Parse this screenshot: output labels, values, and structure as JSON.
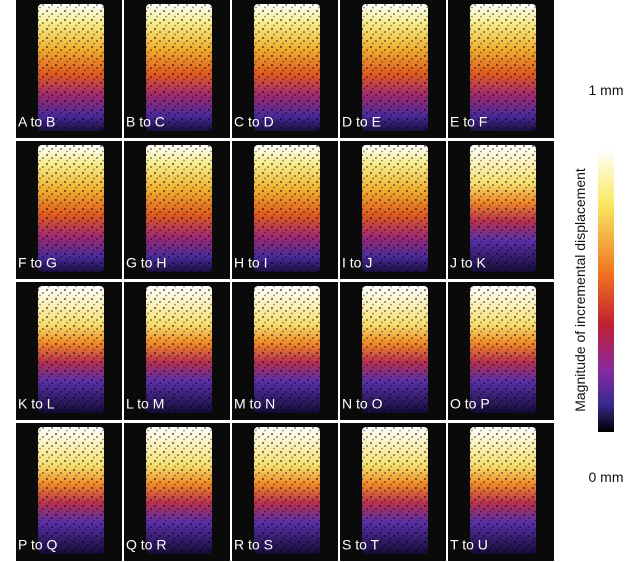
{
  "panels": [
    {
      "label": "A to B"
    },
    {
      "label": "B to C"
    },
    {
      "label": "C to D"
    },
    {
      "label": "D to E"
    },
    {
      "label": "E to F"
    },
    {
      "label": "F to G"
    },
    {
      "label": "G to H"
    },
    {
      "label": "H to I"
    },
    {
      "label": "I to J"
    },
    {
      "label": "J to K"
    },
    {
      "label": "K to L"
    },
    {
      "label": "L to M"
    },
    {
      "label": "M to N"
    },
    {
      "label": "N to O"
    },
    {
      "label": "O to P"
    },
    {
      "label": "P to Q"
    },
    {
      "label": "Q to R"
    },
    {
      "label": "R to S"
    },
    {
      "label": "S to T"
    },
    {
      "label": "T to U"
    }
  ],
  "colorbar": {
    "title": "Magnitude of incremental displacement",
    "max_label": "1 mm",
    "min_label": "0 mm"
  }
}
